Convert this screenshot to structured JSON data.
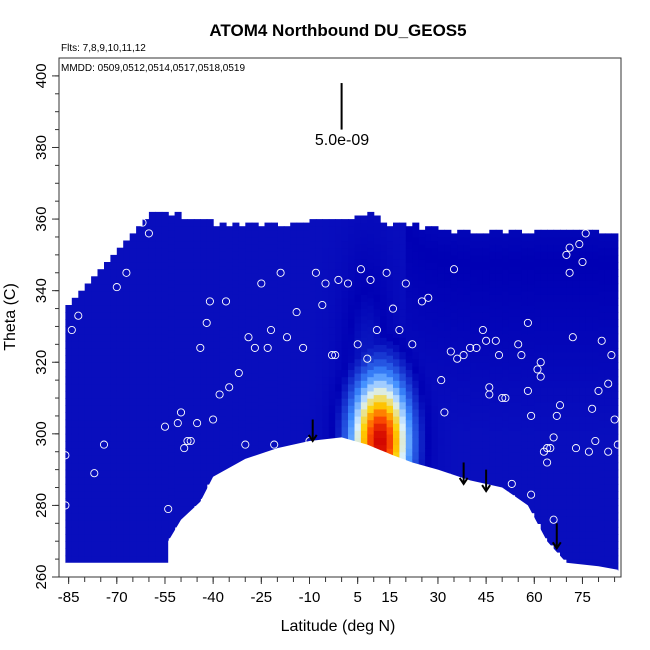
{
  "chart_data": {
    "type": "heatmap",
    "title": "ATOM4 Northbound DU_GEOS5",
    "xlabel": "Latitude (deg N)",
    "ylabel": "Theta (C)",
    "annotations": {
      "flights": "Flts: 7,8,9,10,11,12",
      "dates": "MMDD: 0509,0512,0514,0517,0518,0519",
      "scale_label": "5.0e-09"
    },
    "xlim": [
      -88,
      87
    ],
    "ylim": [
      260,
      405
    ],
    "x_ticks": [
      -85,
      -70,
      -55,
      -40,
      -25,
      -10,
      5,
      15,
      30,
      45,
      60,
      75
    ],
    "x_tick_labels": [
      "-85",
      "-70",
      "-55",
      "-40",
      "-25",
      "-10",
      "5",
      "15",
      "30",
      "45",
      "60",
      "75"
    ],
    "y_ticks": [
      260,
      280,
      300,
      320,
      340,
      360,
      380,
      400
    ],
    "y_tick_labels": [
      "260",
      "280",
      "300",
      "320",
      "340",
      "360",
      "380",
      "400"
    ],
    "grid": false,
    "legend": "none",
    "colors": {
      "low": "#8a2be2",
      "mid": "#1a2ad0",
      "deep": "#0000b4",
      "high_light": "#d8f0ff",
      "high_yellow": "#ffd000",
      "high_red": "#d00000",
      "marker": "#ffffff",
      "arrow": "#000000"
    },
    "data_extent": {
      "x_range": [
        -86,
        86
      ],
      "top_theta": [
        [
          -86,
          333
        ],
        [
          -78,
          343
        ],
        [
          -70,
          351
        ],
        [
          -63,
          358
        ],
        [
          -58,
          361
        ],
        [
          -50,
          360
        ],
        [
          -40,
          358
        ],
        [
          -30,
          358
        ],
        [
          -20,
          358
        ],
        [
          -10,
          358
        ],
        [
          0,
          359
        ],
        [
          8,
          361
        ],
        [
          15,
          358
        ],
        [
          25,
          357
        ],
        [
          35,
          356
        ],
        [
          45,
          356
        ],
        [
          55,
          356
        ],
        [
          65,
          356
        ],
        [
          75,
          356
        ],
        [
          86,
          355
        ]
      ],
      "bottom_theta": [
        [
          -86,
          264
        ],
        [
          -72,
          264
        ],
        [
          -54,
          264
        ],
        [
          -54,
          270
        ],
        [
          -50,
          276
        ],
        [
          -44,
          281
        ],
        [
          -40,
          288
        ],
        [
          -30,
          293
        ],
        [
          -20,
          296
        ],
        [
          -10,
          298
        ],
        [
          0,
          299
        ],
        [
          8,
          297
        ],
        [
          16,
          294
        ],
        [
          22,
          292
        ],
        [
          30,
          290
        ],
        [
          40,
          287
        ],
        [
          50,
          285
        ],
        [
          58,
          280
        ],
        [
          64,
          270
        ],
        [
          70,
          264
        ],
        [
          80,
          263
        ],
        [
          86,
          262
        ]
      ]
    },
    "field_features": [
      {
        "lat": 12,
        "theta": 298,
        "width_lat": 9,
        "height_theta": 18,
        "level": 1.0
      },
      {
        "lat": 8,
        "theta": 318,
        "width_lat": 8,
        "height_theta": 30,
        "level": 0.45
      },
      {
        "lat": 70,
        "theta": 325,
        "width_lat": 18,
        "height_theta": 25,
        "level": 0.3
      }
    ],
    "flight_points": [
      [
        -86,
        294
      ],
      [
        -86,
        280
      ],
      [
        -84,
        329
      ],
      [
        -82,
        333
      ],
      [
        -77,
        289
      ],
      [
        -74,
        297
      ],
      [
        -70,
        341
      ],
      [
        -67,
        345
      ],
      [
        -64,
        361
      ],
      [
        -62,
        359
      ],
      [
        -60,
        356
      ],
      [
        -55,
        302
      ],
      [
        -54,
        279
      ],
      [
        -51,
        303
      ],
      [
        -50,
        306
      ],
      [
        -49,
        296
      ],
      [
        -48,
        298
      ],
      [
        -47,
        298
      ],
      [
        -45,
        303
      ],
      [
        -44,
        324
      ],
      [
        -42,
        331
      ],
      [
        -41,
        337
      ],
      [
        -40,
        304
      ],
      [
        -38,
        311
      ],
      [
        -36,
        337
      ],
      [
        -35,
        313
      ],
      [
        -32,
        317
      ],
      [
        -30,
        297
      ],
      [
        -29,
        327
      ],
      [
        -27,
        324
      ],
      [
        -25,
        342
      ],
      [
        -23,
        324
      ],
      [
        -22,
        329
      ],
      [
        -21,
        297
      ],
      [
        -19,
        345
      ],
      [
        -17,
        327
      ],
      [
        -14,
        334
      ],
      [
        -12,
        324
      ],
      [
        -10,
        298
      ],
      [
        -8,
        345
      ],
      [
        -6,
        336
      ],
      [
        -5,
        342
      ],
      [
        -3,
        322
      ],
      [
        -2,
        322
      ],
      [
        -1,
        343
      ],
      [
        2,
        342
      ],
      [
        5,
        325
      ],
      [
        6,
        346
      ],
      [
        8,
        321
      ],
      [
        9,
        343
      ],
      [
        11,
        329
      ],
      [
        14,
        345
      ],
      [
        16,
        335
      ],
      [
        18,
        329
      ],
      [
        20,
        342
      ],
      [
        22,
        325
      ],
      [
        25,
        337
      ],
      [
        27,
        338
      ],
      [
        31,
        315
      ],
      [
        32,
        306
      ],
      [
        34,
        323
      ],
      [
        35,
        346
      ],
      [
        36,
        321
      ],
      [
        38,
        322
      ],
      [
        40,
        324
      ],
      [
        42,
        324
      ],
      [
        44,
        329
      ],
      [
        45,
        326
      ],
      [
        46,
        311
      ],
      [
        46,
        313
      ],
      [
        48,
        326
      ],
      [
        49,
        322
      ],
      [
        50,
        310
      ],
      [
        51,
        310
      ],
      [
        53,
        286
      ],
      [
        55,
        325
      ],
      [
        56,
        322
      ],
      [
        58,
        331
      ],
      [
        58,
        312
      ],
      [
        59,
        305
      ],
      [
        59,
        283
      ],
      [
        61,
        318
      ],
      [
        62,
        320
      ],
      [
        62,
        316
      ],
      [
        63,
        295
      ],
      [
        64,
        296
      ],
      [
        64,
        292
      ],
      [
        65,
        296
      ],
      [
        66,
        276
      ],
      [
        66,
        299
      ],
      [
        67,
        305
      ],
      [
        68,
        308
      ],
      [
        70,
        350
      ],
      [
        71,
        352
      ],
      [
        71,
        345
      ],
      [
        72,
        327
      ],
      [
        73,
        296
      ],
      [
        74,
        353
      ],
      [
        75,
        348
      ],
      [
        76,
        356
      ],
      [
        77,
        295
      ],
      [
        78,
        307
      ],
      [
        79,
        298
      ],
      [
        80,
        312
      ],
      [
        81,
        326
      ],
      [
        83,
        295
      ],
      [
        83,
        314
      ],
      [
        84,
        322
      ],
      [
        85,
        304
      ],
      [
        86,
        297
      ]
    ],
    "down_arrows": [
      {
        "lat": -9,
        "theta_top": 304,
        "theta_bottom": 298
      },
      {
        "lat": 38,
        "theta_top": 292,
        "theta_bottom": 286
      },
      {
        "lat": 45,
        "theta_top": 290,
        "theta_bottom": 284
      },
      {
        "lat": 67,
        "theta_top": 275,
        "theta_bottom": 268
      }
    ],
    "scale_bar": {
      "lat": 0,
      "theta_top": 398,
      "theta_bottom": 385
    }
  }
}
